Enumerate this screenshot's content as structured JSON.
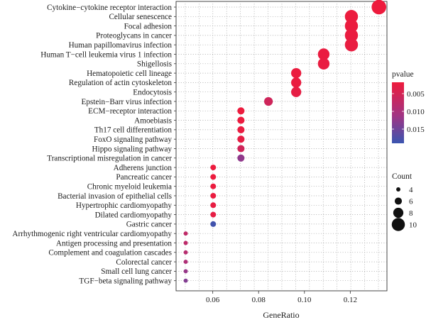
{
  "chart_data": {
    "type": "scatter",
    "xlabel": "GeneRatio",
    "xlim": [
      0.044,
      0.136
    ],
    "xticks": [
      0.06,
      0.08,
      0.1,
      0.12
    ],
    "xtick_labels": [
      "0.06",
      "0.08",
      "0.10",
      "0.12"
    ],
    "grid": true,
    "points": [
      {
        "term": "Cytokine−cytokine receptor interaction",
        "gene_ratio": 0.1325,
        "count": 11,
        "pvalue": 0.0019
      },
      {
        "term": "Cellular senescence",
        "gene_ratio": 0.1205,
        "count": 10,
        "pvalue": 0.0021
      },
      {
        "term": "Focal adhesion",
        "gene_ratio": 0.1205,
        "count": 10,
        "pvalue": 0.0022
      },
      {
        "term": "Proteoglycans in cancer",
        "gene_ratio": 0.1205,
        "count": 10,
        "pvalue": 0.0023
      },
      {
        "term": "Human papillomavirus infection",
        "gene_ratio": 0.1205,
        "count": 10,
        "pvalue": 0.0024
      },
      {
        "term": "Human T−cell leukemia virus 1 infection",
        "gene_ratio": 0.1084,
        "count": 9,
        "pvalue": 0.0023
      },
      {
        "term": "Shigellosis",
        "gene_ratio": 0.1084,
        "count": 9,
        "pvalue": 0.0024
      },
      {
        "term": "Hematopoietic cell lineage",
        "gene_ratio": 0.0964,
        "count": 8,
        "pvalue": 0.0022
      },
      {
        "term": "Regulation of actin cytoskeleton",
        "gene_ratio": 0.0964,
        "count": 8,
        "pvalue": 0.0023
      },
      {
        "term": "Endocytosis",
        "gene_ratio": 0.0964,
        "count": 8,
        "pvalue": 0.0028
      },
      {
        "term": "Epstein−Barr virus infection",
        "gene_ratio": 0.0843,
        "count": 7,
        "pvalue": 0.0057
      },
      {
        "term": "ECM−receptor interaction",
        "gene_ratio": 0.0723,
        "count": 6,
        "pvalue": 0.0021
      },
      {
        "term": "Amoebiasis",
        "gene_ratio": 0.0723,
        "count": 6,
        "pvalue": 0.0022
      },
      {
        "term": "Th17 cell differentiation",
        "gene_ratio": 0.0723,
        "count": 6,
        "pvalue": 0.0024
      },
      {
        "term": "FoxO signaling pathway",
        "gene_ratio": 0.0723,
        "count": 6,
        "pvalue": 0.0029
      },
      {
        "term": "Hippo signaling pathway",
        "gene_ratio": 0.0723,
        "count": 6,
        "pvalue": 0.0056
      },
      {
        "term": "Transcriptional misregulation in cancer",
        "gene_ratio": 0.0723,
        "count": 6,
        "pvalue": 0.0125
      },
      {
        "term": "Adherens junction",
        "gene_ratio": 0.0602,
        "count": 5,
        "pvalue": 0.002
      },
      {
        "term": "Pancreatic cancer",
        "gene_ratio": 0.0602,
        "count": 5,
        "pvalue": 0.0021
      },
      {
        "term": "Chronic myeloid leukemia",
        "gene_ratio": 0.0602,
        "count": 5,
        "pvalue": 0.0022
      },
      {
        "term": "Bacterial invasion of epithelial cells",
        "gene_ratio": 0.0602,
        "count": 5,
        "pvalue": 0.0023
      },
      {
        "term": "Hypertrophic cardiomyopathy",
        "gene_ratio": 0.0602,
        "count": 5,
        "pvalue": 0.0026
      },
      {
        "term": "Dilated cardiomyopathy",
        "gene_ratio": 0.0602,
        "count": 5,
        "pvalue": 0.0028
      },
      {
        "term": "Gastric cancer",
        "gene_ratio": 0.0602,
        "count": 5,
        "pvalue": 0.0185
      },
      {
        "term": "Arrhythmogenic right ventricular cardiomyopathy",
        "gene_ratio": 0.0482,
        "count": 4,
        "pvalue": 0.0075
      },
      {
        "term": "Antigen processing and presentation",
        "gene_ratio": 0.0482,
        "count": 4,
        "pvalue": 0.0078
      },
      {
        "term": "Complement and coagulation cascades",
        "gene_ratio": 0.0482,
        "count": 4,
        "pvalue": 0.0085
      },
      {
        "term": "Colorectal cancer",
        "gene_ratio": 0.0482,
        "count": 4,
        "pvalue": 0.0095
      },
      {
        "term": "Small cell lung cancer",
        "gene_ratio": 0.0482,
        "count": 4,
        "pvalue": 0.012
      },
      {
        "term": "TGF−beta signaling pathway",
        "gene_ratio": 0.0482,
        "count": 4,
        "pvalue": 0.0135
      }
    ],
    "color_legend": {
      "title": "pvalue",
      "range": [
        0.0018,
        0.019
      ],
      "ticks": [
        0.005,
        0.01,
        0.015
      ],
      "tick_labels": [
        "0.005",
        "0.010",
        "0.015"
      ],
      "low_color": "#ee1b3c",
      "high_color": "#3a55b0"
    },
    "size_legend": {
      "title": "Count",
      "values": [
        4,
        6,
        8,
        10
      ],
      "labels": [
        "4",
        "6",
        "8",
        "10"
      ]
    }
  }
}
